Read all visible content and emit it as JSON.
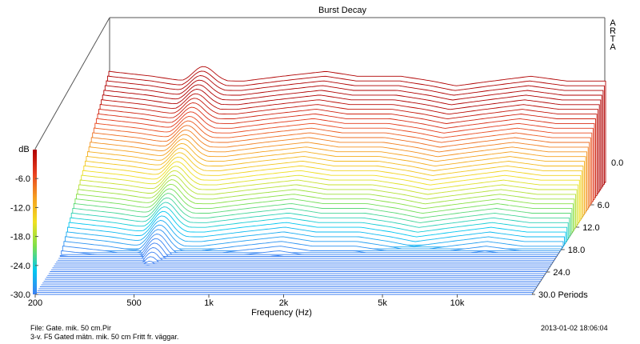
{
  "chart_data": {
    "type": "waterfall",
    "title": "Burst Decay",
    "brand": "ARTA",
    "xlabel": "Frequency (Hz)",
    "x_scale": "log",
    "xlim": [
      200,
      20000
    ],
    "x_ticks": [
      {
        "value": 200,
        "label": "200"
      },
      {
        "value": 500,
        "label": "500"
      },
      {
        "value": 1000,
        "label": "1k"
      },
      {
        "value": 2000,
        "label": "2k"
      },
      {
        "value": 5000,
        "label": "5k"
      },
      {
        "value": 10000,
        "label": "10k"
      }
    ],
    "zlabel": "dB",
    "zlim": [
      -30,
      0
    ],
    "z_ticks": [
      {
        "value": -6,
        "label": "-6.0"
      },
      {
        "value": -12,
        "label": "-12.0"
      },
      {
        "value": -18,
        "label": "-18.0"
      },
      {
        "value": -24,
        "label": "-24.0"
      },
      {
        "value": -30,
        "label": "-30.0"
      }
    ],
    "z_back_tick": {
      "value": 0,
      "label": "0.0"
    },
    "ylabel": "Periods",
    "ylim": [
      0,
      30
    ],
    "y_ticks": [
      {
        "value": 6,
        "label": "6.0"
      },
      {
        "value": 12,
        "label": "12.0"
      },
      {
        "value": 18,
        "label": "18.0"
      },
      {
        "value": 24,
        "label": "24.0"
      },
      {
        "value": 30,
        "label": "30.0 Periods"
      }
    ],
    "slices": 60,
    "colormap": [
      "#3d7ff2",
      "#00c8f0",
      "#7ee04a",
      "#f0e020",
      "#f5a020",
      "#e84020",
      "#b00000"
    ],
    "colorbar_colors": [
      "#b00000",
      "#e84020",
      "#f5a020",
      "#f0e020",
      "#7ee04a",
      "#00c8f0",
      "#3d7ff2"
    ],
    "initial_response": [
      [
        200,
        -7
      ],
      [
        300,
        -8
      ],
      [
        400,
        -9
      ],
      [
        500,
        -8
      ],
      [
        600,
        -9
      ],
      [
        700,
        -9
      ],
      [
        1000,
        -8
      ],
      [
        1500,
        -7
      ],
      [
        2000,
        -8
      ],
      [
        3000,
        -8
      ],
      [
        4000,
        -9
      ],
      [
        5000,
        -10
      ],
      [
        7000,
        -9
      ],
      [
        10000,
        -8
      ],
      [
        14000,
        -9
      ],
      [
        20000,
        -9
      ]
    ],
    "decay_peaks": [
      {
        "freq_hz": 480,
        "level_db": -6,
        "decay_periods": 30
      },
      {
        "freq_hz": 900,
        "level_db": -12,
        "decay_periods": 24
      },
      {
        "freq_hz": 1200,
        "level_db": -14,
        "decay_periods": 30
      },
      {
        "freq_hz": 1700,
        "level_db": -10,
        "decay_periods": 21
      },
      {
        "freq_hz": 2300,
        "level_db": -12,
        "decay_periods": 25
      },
      {
        "freq_hz": 3400,
        "level_db": -10,
        "decay_periods": 17
      },
      {
        "freq_hz": 6000,
        "level_db": -16,
        "decay_periods": 23
      },
      {
        "freq_hz": 9000,
        "level_db": -18,
        "decay_periods": 20
      }
    ]
  },
  "footer": {
    "file": "File: Gate. mik. 50 cm.Pir",
    "description": "3-v. F5 Gated mätn. mik. 50 cm Fritt fr. väggar.",
    "timestamp": "2013-01-02  18:06:04"
  }
}
